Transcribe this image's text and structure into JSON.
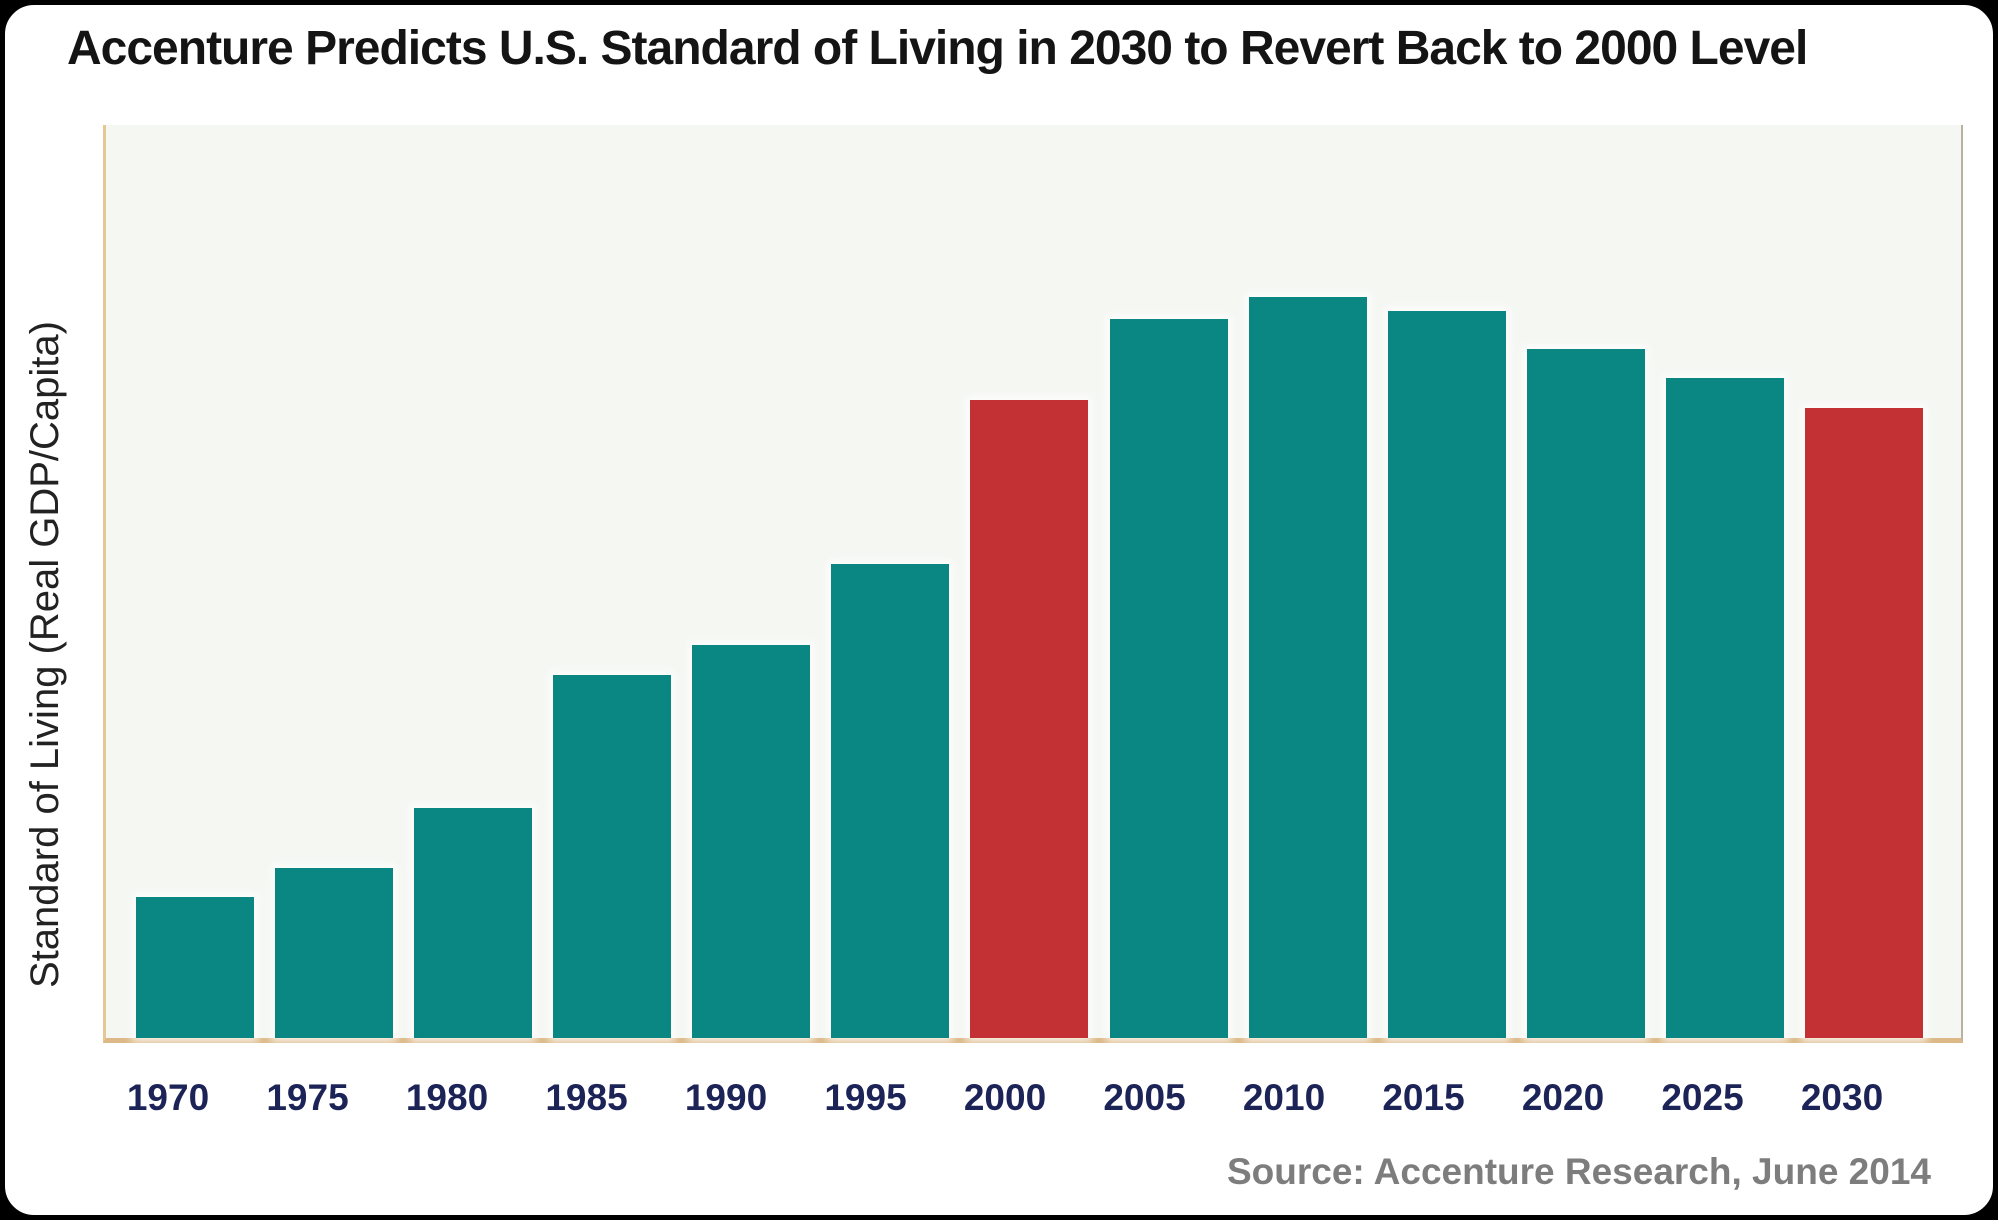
{
  "title": "Accenture Predicts U.S. Standard of Living in 2030 to Revert Back to 2000 Level",
  "source_note": "Source: Accenture Research, June 2014",
  "colors": {
    "bar_teal": "#0a8683",
    "bar_highlight_red": "#c43134",
    "x_tick_navy": "#1c2356",
    "axis_tan": "#dcb987",
    "plot_background": "#f5f7f3",
    "source_gray": "#7d7d7d",
    "title_black": "#141414"
  },
  "chart_data": {
    "type": "bar",
    "title": "Accenture Predicts U.S. Standard of Living in 2030 to Revert Back to 2000 Level",
    "xlabel": "",
    "ylabel": "Standard of Living (Real GDP/Capita)",
    "categories": [
      "1970",
      "1975",
      "1980",
      "1985",
      "1990",
      "1995",
      "2000",
      "2005",
      "2010",
      "2015",
      "2020",
      "2025",
      "2030"
    ],
    "values": [
      19,
      23,
      31,
      49,
      53,
      64,
      86,
      97,
      100,
      98,
      93,
      89,
      85
    ],
    "value_scale_note": "No numeric y-axis shown in chart; values are relative index estimated from bar heights, 2010 = 100",
    "ylim": [
      0,
      100
    ],
    "grid": false,
    "legend": false,
    "highlight_categories": [
      "2000",
      "2030"
    ],
    "bar_color": "#0a8683",
    "highlight_color": "#c43134",
    "source": "Source: Accenture Research, June 2014"
  }
}
